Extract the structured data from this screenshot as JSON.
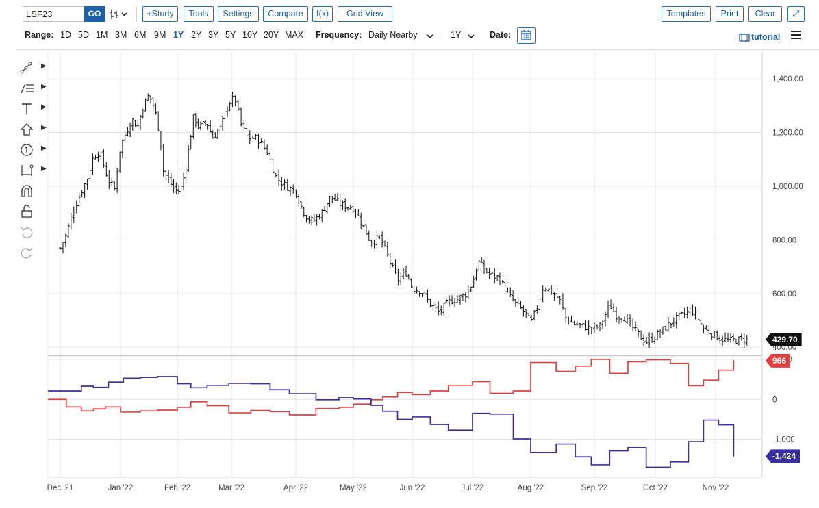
{
  "toolbar": {
    "symbol": "LSF23",
    "go_label": "GO",
    "bar_type_label": "┤├ ⌄",
    "study_label": "+Study",
    "tools_label": "Tools",
    "settings_label": "Settings",
    "compare_label": "Compare",
    "fx_label": "f(x)",
    "gridview_label": "Grid View",
    "templates_label": "Templates",
    "print_label": "Print",
    "clear_label": "Clear",
    "expand_label": "⤢"
  },
  "controls": {
    "range_label": "Range:",
    "ranges": [
      "1D",
      "5D",
      "1M",
      "3M",
      "6M",
      "9M",
      "1Y",
      "2Y",
      "3Y",
      "5Y",
      "10Y",
      "20Y",
      "MAX"
    ],
    "active_range": "1Y",
    "frequency_label": "Frequency:",
    "frequency_value": "Daily Nearby",
    "period_value": "1Y",
    "date_label": "Date:",
    "tutorial_label": "tutorial"
  },
  "colors": {
    "accent": "#1d5ea8",
    "price_tag": "#111111",
    "red_series": "#e04040",
    "blue_series": "#3a2fa0",
    "grid": "#dfe3e8"
  },
  "chart_data": [
    {
      "type": "ohlc",
      "x_labels": [
        "Dec '21",
        "Jan '22",
        "Feb '22",
        "Mar '22",
        "Apr '22",
        "May '22",
        "Jun '22",
        "Jul '22",
        "Aug '22",
        "Sep '22",
        "Oct '22",
        "Nov '22"
      ],
      "y_ticks": [
        400,
        600,
        800,
        1000,
        1200,
        1400
      ],
      "y_tick_labels": [
        "400.00",
        "600.00",
        "800.00",
        "1,000.00",
        "1,200.00",
        "1,400.00"
      ],
      "ylim": [
        370,
        1500
      ],
      "last_price": "429.70",
      "close_path": [
        [
          0,
          770
        ],
        [
          0.1,
          820
        ],
        [
          0.2,
          900
        ],
        [
          0.35,
          980
        ],
        [
          0.45,
          1030
        ],
        [
          0.55,
          1110
        ],
        [
          0.65,
          1130
        ],
        [
          0.8,
          1020
        ],
        [
          0.9,
          990
        ],
        [
          1.0,
          1150
        ],
        [
          1.1,
          1200
        ],
        [
          1.2,
          1250
        ],
        [
          1.3,
          1220
        ],
        [
          1.4,
          1300
        ],
        [
          1.5,
          1340
        ],
        [
          1.6,
          1290
        ],
        [
          1.7,
          1180
        ],
        [
          1.75,
          1060
        ],
        [
          1.85,
          1020
        ],
        [
          1.95,
          990
        ],
        [
          2.05,
          980
        ],
        [
          2.15,
          1060
        ],
        [
          2.3,
          1260
        ],
        [
          2.4,
          1220
        ],
        [
          2.55,
          1240
        ],
        [
          2.65,
          1180
        ],
        [
          2.8,
          1220
        ],
        [
          2.95,
          1310
        ],
        [
          3.05,
          1330
        ],
        [
          3.15,
          1230
        ],
        [
          3.25,
          1180
        ],
        [
          3.4,
          1180
        ],
        [
          3.55,
          1130
        ],
        [
          3.7,
          1030
        ],
        [
          3.85,
          1000
        ],
        [
          4.0,
          980
        ],
        [
          4.1,
          920
        ],
        [
          4.2,
          880
        ],
        [
          4.3,
          870
        ],
        [
          4.45,
          900
        ],
        [
          4.6,
          960
        ],
        [
          4.8,
          930
        ],
        [
          5.0,
          920
        ],
        [
          5.15,
          860
        ],
        [
          5.3,
          790
        ],
        [
          5.45,
          810
        ],
        [
          5.6,
          730
        ],
        [
          5.75,
          650
        ],
        [
          5.9,
          680
        ],
        [
          6.0,
          620
        ],
        [
          6.15,
          610
        ],
        [
          6.3,
          560
        ],
        [
          6.45,
          530
        ],
        [
          6.6,
          570
        ],
        [
          6.75,
          580
        ],
        [
          6.9,
          600
        ],
        [
          7.0,
          640
        ],
        [
          7.1,
          720
        ],
        [
          7.2,
          690
        ],
        [
          7.3,
          670
        ],
        [
          7.45,
          660
        ],
        [
          7.6,
          600
        ],
        [
          7.75,
          560
        ],
        [
          7.9,
          530
        ],
        [
          8.0,
          490
        ],
        [
          8.1,
          550
        ],
        [
          8.2,
          630
        ],
        [
          8.35,
          600
        ],
        [
          8.45,
          580
        ],
        [
          8.55,
          510
        ],
        [
          8.65,
          490
        ],
        [
          8.8,
          480
        ],
        [
          8.95,
          470
        ],
        [
          9.1,
          480
        ],
        [
          9.25,
          560
        ],
        [
          9.35,
          520
        ],
        [
          9.5,
          510
        ],
        [
          9.6,
          480
        ],
        [
          9.75,
          440
        ],
        [
          9.85,
          420
        ],
        [
          10.0,
          440
        ],
        [
          10.15,
          470
        ],
        [
          10.3,
          500
        ],
        [
          10.45,
          520
        ],
        [
          10.6,
          540
        ],
        [
          10.7,
          510
        ],
        [
          10.8,
          470
        ],
        [
          10.95,
          450
        ],
        [
          11.1,
          430
        ],
        [
          11.25,
          425
        ],
        [
          11.4,
          428
        ],
        [
          11.55,
          430
        ]
      ]
    },
    {
      "type": "line",
      "y_ticks": [
        -1000,
        0,
        1000
      ],
      "y_tick_labels": [
        "-1,000",
        "0",
        "1,000"
      ],
      "ylim": [
        -1950,
        1050
      ],
      "series": [
        {
          "name": "",
          "color": "#e04040",
          "last_label": "966",
          "steps": [
            [
              0,
              0
            ],
            [
              0.1,
              -190
            ],
            [
              0.35,
              -290
            ],
            [
              0.55,
              -240
            ],
            [
              0.75,
              -190
            ],
            [
              1.0,
              -320
            ],
            [
              1.35,
              -290
            ],
            [
              1.65,
              -270
            ],
            [
              2.0,
              -200
            ],
            [
              2.25,
              -60
            ],
            [
              2.55,
              -160
            ],
            [
              2.95,
              -340
            ],
            [
              3.3,
              -280
            ],
            [
              3.6,
              -310
            ],
            [
              3.9,
              -390
            ],
            [
              4.35,
              -230
            ],
            [
              4.75,
              -200
            ],
            [
              5.0,
              -120
            ],
            [
              5.3,
              -10
            ],
            [
              5.5,
              60
            ],
            [
              5.75,
              170
            ],
            [
              6.0,
              120
            ],
            [
              6.3,
              210
            ],
            [
              6.6,
              350
            ],
            [
              7.0,
              440
            ],
            [
              7.3,
              150
            ],
            [
              7.7,
              210
            ],
            [
              8.0,
              920
            ],
            [
              8.4,
              700
            ],
            [
              8.7,
              830
            ],
            [
              8.95,
              1000
            ],
            [
              9.25,
              650
            ],
            [
              9.55,
              940
            ],
            [
              9.85,
              990
            ],
            [
              10.25,
              900
            ],
            [
              10.55,
              340
            ],
            [
              10.8,
              480
            ],
            [
              11.05,
              730
            ],
            [
              11.3,
              966
            ]
          ]
        },
        {
          "name": "",
          "color": "#3a2fa0",
          "last_label": "-1,424",
          "steps": [
            [
              0,
              210
            ],
            [
              0.15,
              210
            ],
            [
              0.35,
              330
            ],
            [
              0.55,
              300
            ],
            [
              0.8,
              430
            ],
            [
              1.05,
              530
            ],
            [
              1.35,
              550
            ],
            [
              1.65,
              570
            ],
            [
              2.0,
              390
            ],
            [
              2.25,
              290
            ],
            [
              2.55,
              350
            ],
            [
              2.95,
              400
            ],
            [
              3.3,
              390
            ],
            [
              3.6,
              240
            ],
            [
              3.9,
              140
            ],
            [
              4.35,
              -10
            ],
            [
              4.75,
              40
            ],
            [
              5.0,
              10
            ],
            [
              5.3,
              -150
            ],
            [
              5.5,
              -300
            ],
            [
              5.75,
              -500
            ],
            [
              6.0,
              -440
            ],
            [
              6.3,
              -630
            ],
            [
              6.6,
              -770
            ],
            [
              7.0,
              -350
            ],
            [
              7.3,
              -370
            ],
            [
              7.7,
              -990
            ],
            [
              8.0,
              -1330
            ],
            [
              8.4,
              -1120
            ],
            [
              8.7,
              -1440
            ],
            [
              8.95,
              -1640
            ],
            [
              9.25,
              -1290
            ],
            [
              9.55,
              -1210
            ],
            [
              9.85,
              -1700
            ],
            [
              10.25,
              -1570
            ],
            [
              10.55,
              -1060
            ],
            [
              10.8,
              -520
            ],
            [
              11.05,
              -640
            ],
            [
              11.3,
              -1424
            ]
          ]
        }
      ]
    }
  ]
}
